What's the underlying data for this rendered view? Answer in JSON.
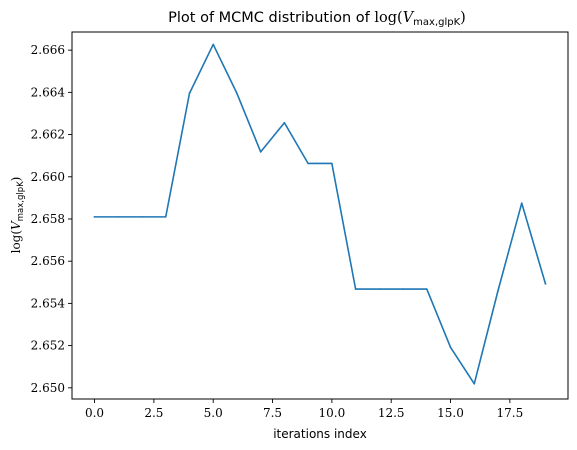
{
  "chart_data": {
    "type": "line",
    "title": {
      "prefix": "Plot of MCMC distribution of ",
      "math_func": "log(",
      "math_var": "V",
      "math_sub": "max,glpK",
      "math_close": ")"
    },
    "xlabel": "iterations index",
    "ylabel": {
      "math_func": "log(",
      "math_var": "V",
      "math_sub": "max,glpK",
      "math_close": ")"
    },
    "xlim": [
      -0.95,
      19.95
    ],
    "ylim": [
      2.64947,
      2.66686
    ],
    "xticks": [
      0.0,
      2.5,
      5.0,
      7.5,
      10.0,
      12.5,
      15.0,
      17.5
    ],
    "xtick_labels": [
      "0.0",
      "2.5",
      "5.0",
      "7.5",
      "10.0",
      "12.5",
      "15.0",
      "17.5"
    ],
    "yticks": [
      2.65,
      2.652,
      2.654,
      2.656,
      2.658,
      2.66,
      2.662,
      2.664,
      2.666
    ],
    "ytick_labels": [
      "2.650",
      "2.652",
      "2.654",
      "2.656",
      "2.658",
      "2.660",
      "2.662",
      "2.664",
      "2.666"
    ],
    "grid": false,
    "series": [
      {
        "color": "#1f77b4",
        "x": [
          0,
          1,
          2,
          3,
          4,
          5,
          6,
          7,
          8,
          9,
          10,
          11,
          12,
          13,
          14,
          15,
          16,
          17,
          18,
          19
        ],
        "y": [
          2.6581,
          2.6581,
          2.6581,
          2.6581,
          2.66395,
          2.66627,
          2.66395,
          2.66118,
          2.66256,
          2.66063,
          2.66063,
          2.65468,
          2.65468,
          2.65468,
          2.65468,
          2.65192,
          2.65019,
          2.6546,
          2.65875,
          2.65493
        ]
      }
    ]
  }
}
